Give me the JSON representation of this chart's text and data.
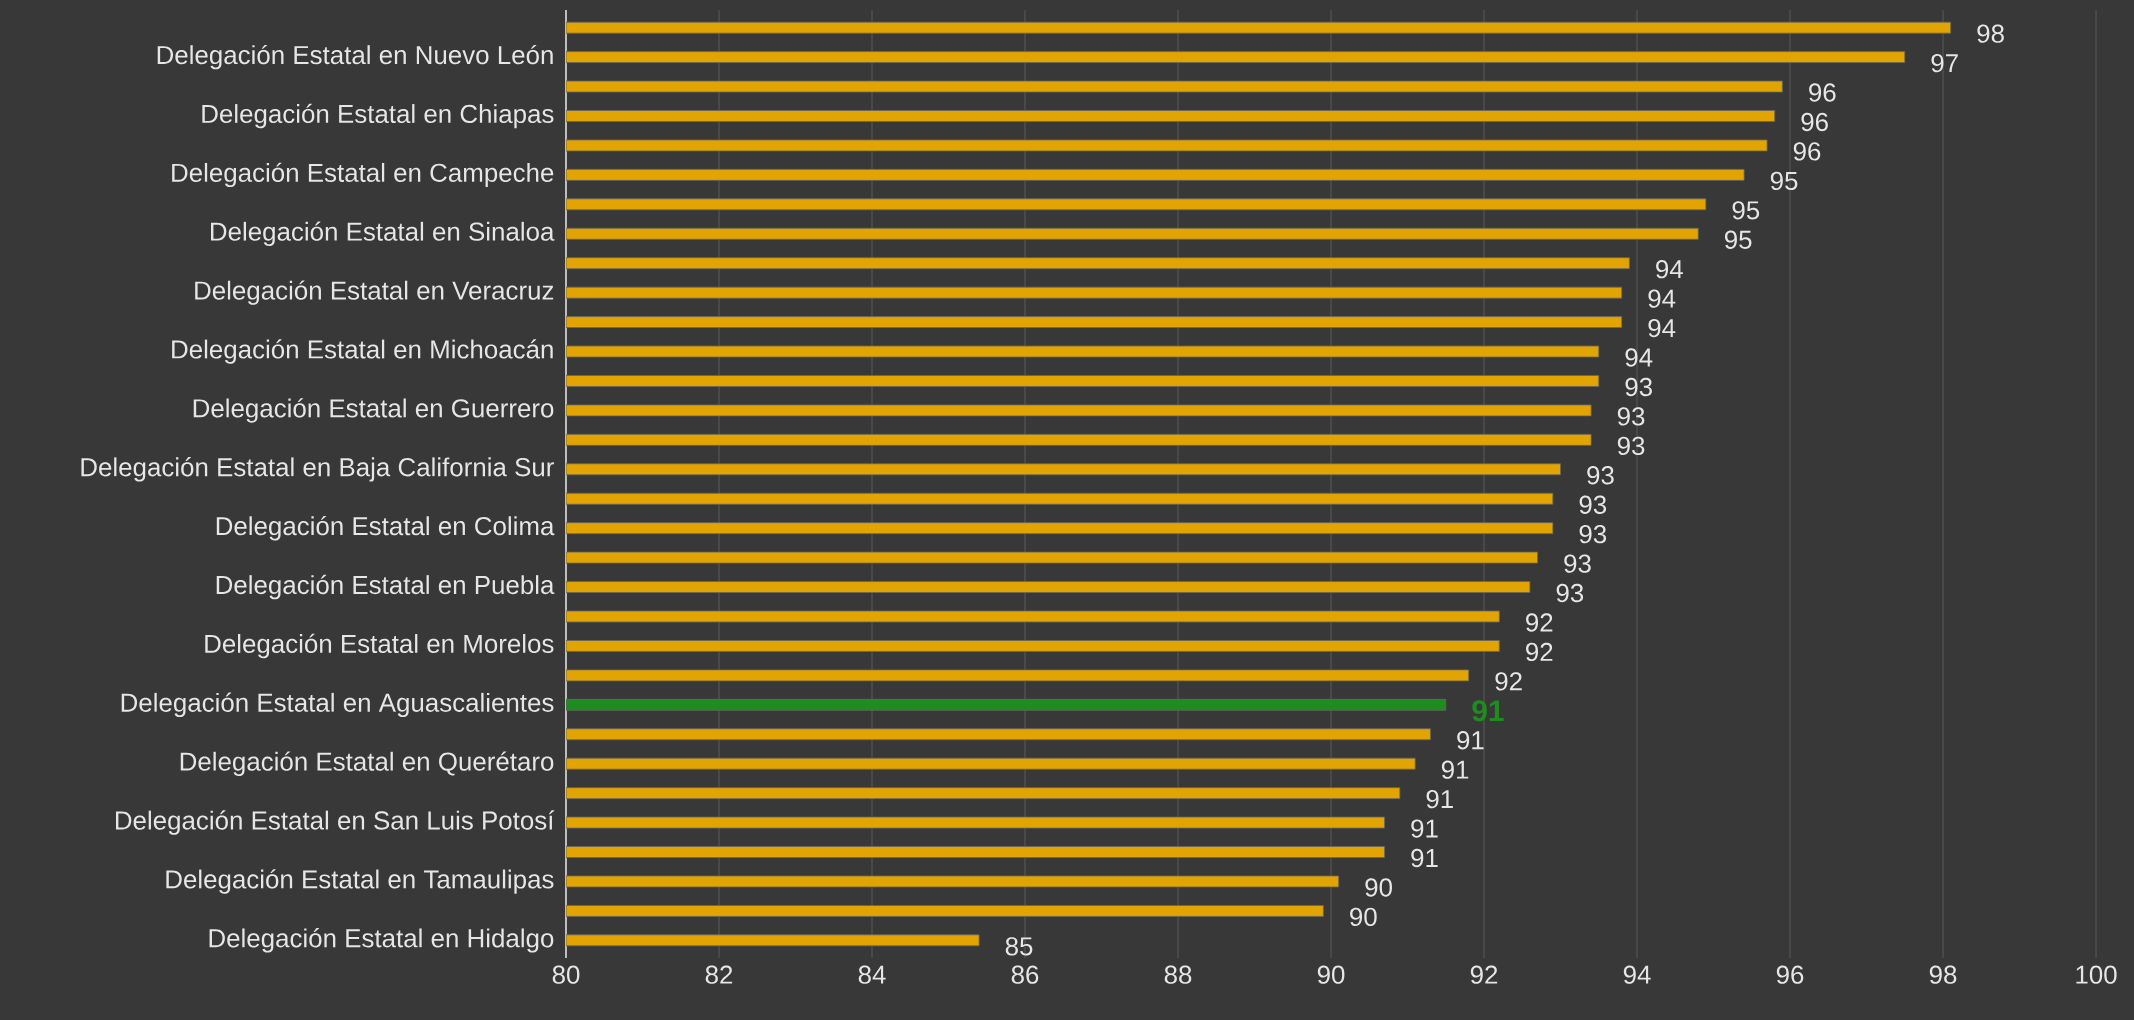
{
  "chart_data": {
    "type": "bar",
    "orientation": "horizontal",
    "categories": [
      null,
      "Delegación Estatal en Nuevo León",
      null,
      "Delegación Estatal en Chiapas",
      null,
      "Delegación Estatal en Campeche",
      null,
      "Delegación Estatal en Sinaloa",
      null,
      "Delegación Estatal en Veracruz",
      null,
      "Delegación Estatal en Michoacán",
      null,
      "Delegación Estatal en Guerrero",
      null,
      "Delegación Estatal en Baja California Sur",
      null,
      "Delegación Estatal en Colima",
      null,
      "Delegación Estatal en Puebla",
      null,
      "Delegación Estatal en Morelos",
      null,
      "Delegación Estatal en Aguascalientes",
      null,
      "Delegación Estatal en Querétaro",
      null,
      "Delegación Estatal en San Luis Potosí",
      null,
      "Delegación Estatal en Tamaulipas",
      null,
      "Delegación Estatal en Hidalgo"
    ],
    "values": [
      98.1,
      97.5,
      95.9,
      95.8,
      95.7,
      95.4,
      94.9,
      94.8,
      93.9,
      93.8,
      93.8,
      93.5,
      93.5,
      93.4,
      93.4,
      93.0,
      92.9,
      92.9,
      92.7,
      92.6,
      92.2,
      92.2,
      91.8,
      91.5,
      91.3,
      91.1,
      90.9,
      90.7,
      90.7,
      90.1,
      89.9,
      85.4
    ],
    "value_labels": [
      "98",
      "97",
      "96",
      "96",
      "96",
      "95",
      "95",
      "95",
      "94",
      "94",
      "94",
      "94",
      "93",
      "93",
      "93",
      "93",
      "93",
      "93",
      "93",
      "93",
      "92",
      "92",
      "92",
      "91",
      "91",
      "91",
      "91",
      "91",
      "91",
      "90",
      "90",
      "85"
    ],
    "colors": [
      "#e2a400",
      "#e2a400",
      "#e2a400",
      "#e2a400",
      "#e2a400",
      "#e2a400",
      "#e2a400",
      "#e2a400",
      "#e2a400",
      "#e2a400",
      "#e2a400",
      "#e2a400",
      "#e2a400",
      "#e2a400",
      "#e2a400",
      "#e2a400",
      "#e2a400",
      "#e2a400",
      "#e2a400",
      "#e2a400",
      "#e2a400",
      "#e2a400",
      "#e2a400",
      "#1e8c1e",
      "#e2a400",
      "#e2a400",
      "#e2a400",
      "#e2a400",
      "#e2a400",
      "#e2a400",
      "#e2a400",
      "#e2a400"
    ],
    "xlim": [
      80,
      100
    ],
    "xticks": [
      80,
      82,
      84,
      86,
      88,
      90,
      92,
      94,
      96,
      98,
      100
    ],
    "grid": "x"
  }
}
